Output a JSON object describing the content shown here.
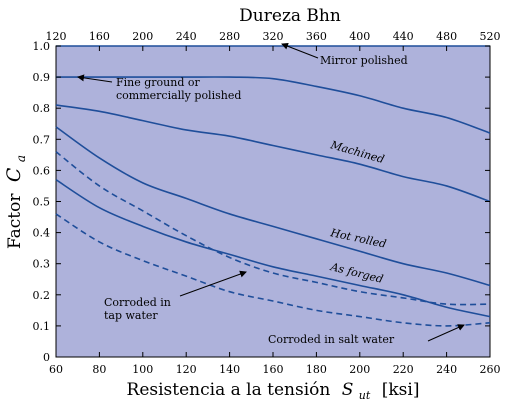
{
  "chart_data": {
    "type": "line",
    "colors": {
      "plot_bg": "#aeb2db",
      "line": "#1f4e9a",
      "axis": "#000000"
    },
    "x_bottom": {
      "label": "Resistencia a la tensión",
      "symbol": "S",
      "symbol_sub": "ut",
      "unit": "[ksi]",
      "range": [
        60,
        260
      ],
      "ticks": [
        "60",
        "80",
        "100",
        "120",
        "140",
        "160",
        "180",
        "200",
        "220",
        "240",
        "260"
      ]
    },
    "x_top": {
      "label": "Dureza Bhn",
      "range": [
        120,
        520
      ],
      "ticks": [
        "120",
        "160",
        "200",
        "240",
        "280",
        "320",
        "360",
        "400",
        "440",
        "480",
        "520"
      ]
    },
    "y": {
      "label": "Factor",
      "symbol": "C",
      "symbol_sub": "a",
      "range": [
        0,
        1.0
      ],
      "ticks": [
        "0",
        "0.1",
        "0.2",
        "0.3",
        "0.4",
        "0.5",
        "0.6",
        "0.7",
        "0.8",
        "0.9",
        "1.0"
      ]
    },
    "grid": false,
    "series": [
      {
        "name": "Mirror polished",
        "style": "solid",
        "x": [
          60,
          100,
          140,
          180,
          260
        ],
        "y": [
          1.0,
          1.0,
          1.0,
          1.0,
          1.0
        ]
      },
      {
        "name": "Fine ground or commercially polished",
        "style": "solid",
        "x": [
          60,
          80,
          100,
          120,
          140,
          160,
          180,
          200,
          220,
          240,
          260
        ],
        "y": [
          0.9,
          0.9,
          0.9,
          0.9,
          0.9,
          0.895,
          0.87,
          0.84,
          0.8,
          0.77,
          0.72
        ]
      },
      {
        "name": "Machined",
        "style": "solid",
        "x": [
          60,
          80,
          100,
          120,
          140,
          160,
          180,
          200,
          220,
          240,
          260
        ],
        "y": [
          0.81,
          0.79,
          0.76,
          0.73,
          0.71,
          0.68,
          0.65,
          0.62,
          0.58,
          0.55,
          0.5
        ]
      },
      {
        "name": "Hot rolled",
        "style": "solid",
        "x": [
          60,
          80,
          100,
          120,
          140,
          160,
          180,
          200,
          220,
          240,
          260
        ],
        "y": [
          0.74,
          0.64,
          0.56,
          0.51,
          0.46,
          0.42,
          0.38,
          0.34,
          0.3,
          0.27,
          0.23
        ]
      },
      {
        "name": "As forged",
        "style": "solid",
        "x": [
          60,
          80,
          100,
          120,
          140,
          160,
          180,
          200,
          220,
          240,
          260
        ],
        "y": [
          0.57,
          0.48,
          0.42,
          0.37,
          0.33,
          0.29,
          0.26,
          0.23,
          0.2,
          0.16,
          0.13
        ]
      },
      {
        "name": "Corroded in tap water",
        "style": "dashed",
        "x": [
          60,
          80,
          100,
          120,
          140,
          160,
          180,
          200,
          220,
          240,
          260
        ],
        "y": [
          0.66,
          0.55,
          0.47,
          0.39,
          0.32,
          0.27,
          0.24,
          0.21,
          0.19,
          0.17,
          0.17
        ]
      },
      {
        "name": "Corroded in salt water",
        "style": "dashed",
        "x": [
          60,
          80,
          100,
          120,
          140,
          160,
          180,
          200,
          220,
          240,
          260
        ],
        "y": [
          0.46,
          0.37,
          0.31,
          0.26,
          0.21,
          0.18,
          0.15,
          0.13,
          0.11,
          0.1,
          0.11
        ]
      }
    ],
    "annotations": [
      {
        "id": "mirror",
        "lines": [
          "Mirror polished"
        ],
        "italic": false
      },
      {
        "id": "fine",
        "lines": [
          "Fine ground or",
          "commercially polished"
        ],
        "italic": false
      },
      {
        "id": "machined",
        "lines": [
          "Machined"
        ],
        "italic": true
      },
      {
        "id": "hot",
        "lines": [
          "Hot rolled"
        ],
        "italic": true
      },
      {
        "id": "forged",
        "lines": [
          "As forged"
        ],
        "italic": true
      },
      {
        "id": "tap",
        "lines": [
          "Corroded in",
          "tap water"
        ],
        "italic": false
      },
      {
        "id": "salt",
        "lines": [
          "Corroded  in salt water"
        ],
        "italic": false
      }
    ]
  }
}
